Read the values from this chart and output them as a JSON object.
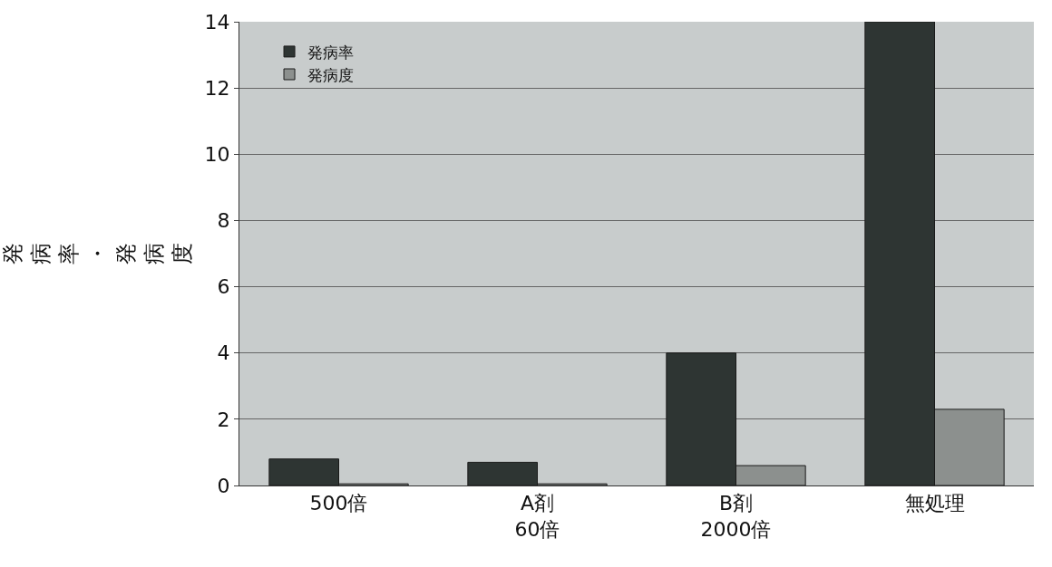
{
  "chart_data": {
    "type": "bar",
    "ylabel": "発病率・発病度",
    "categories": [
      "500倍",
      "A剤\n60倍",
      "B剤\n2000倍",
      "無処理"
    ],
    "series": [
      {
        "name": "発病率",
        "color": "#2e3533",
        "values": [
          0.8,
          0.7,
          4.0,
          14.0
        ]
      },
      {
        "name": "発病度",
        "color": "#8c908e",
        "values": [
          0.05,
          0.05,
          0.6,
          2.3
        ]
      }
    ],
    "ylim": [
      0,
      14
    ],
    "yticks": [
      0,
      2,
      4,
      6,
      8,
      10,
      12,
      14
    ],
    "grid": "y",
    "legend": "top left"
  }
}
